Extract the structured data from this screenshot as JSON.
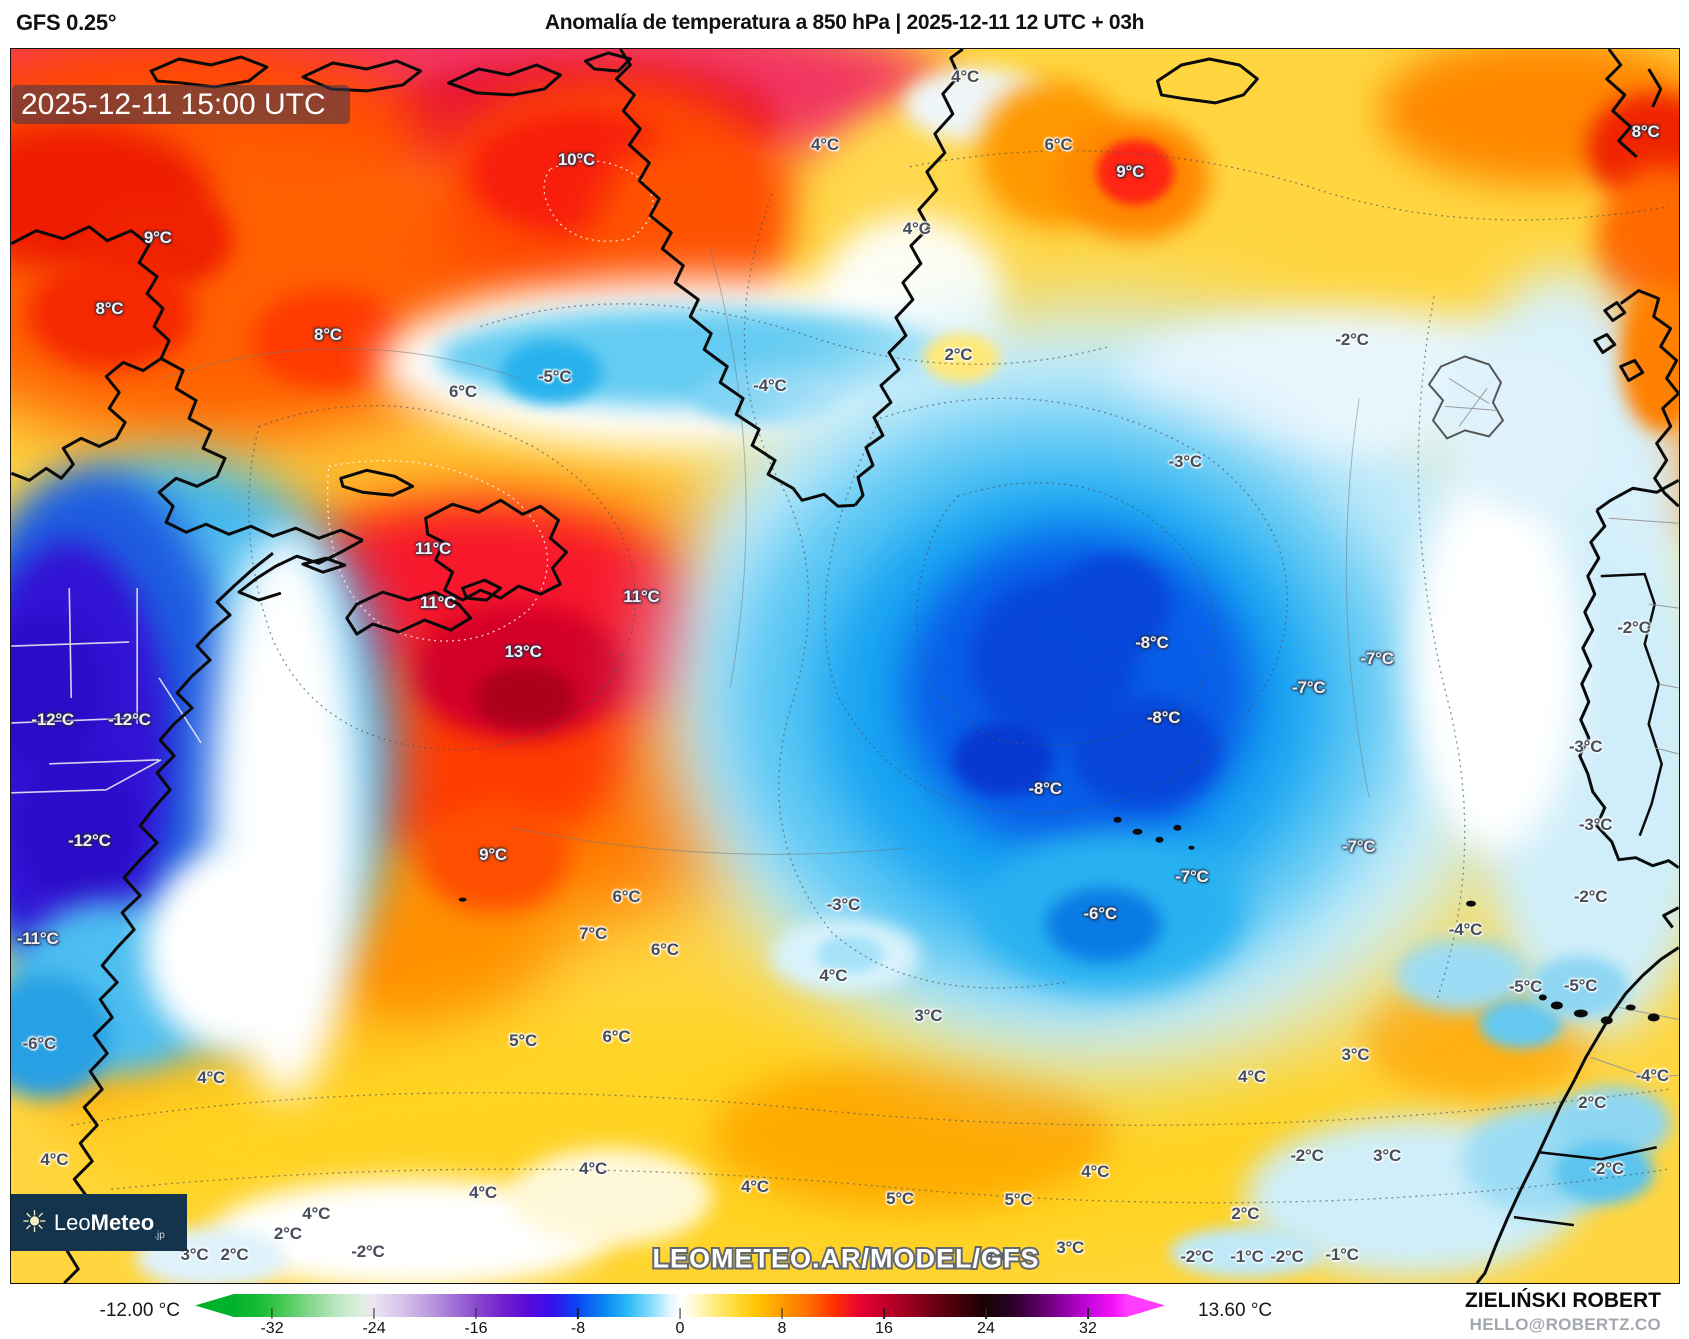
{
  "header": {
    "model": "GFS 0.25°",
    "title": "Anomalía de temperatura a 850 hPa | 2025-12-11 12 UTC + 03h"
  },
  "map": {
    "timestamp": "2025-12-11 15:00 UTC",
    "watermark": "LEOMETEO.AR/MODEL/GFS",
    "logo": {
      "icon": "sun-icon",
      "prefix": "Leo",
      "bold": "Meteo",
      "suffix": ".jp"
    }
  },
  "colorbar": {
    "ticks": [
      "-32",
      "-24",
      "-16",
      "-8",
      "0",
      "8",
      "16",
      "24",
      "32"
    ],
    "value_domain": [
      -35,
      35
    ],
    "min_label": "-12.00 °C",
    "max_label": "13.60 °C",
    "stops": [
      [
        0,
        "#00b22a"
      ],
      [
        4,
        "#00b22a"
      ],
      [
        6.6,
        "#16bc34"
      ],
      [
        9.3,
        "#4cca58"
      ],
      [
        11.9,
        "#84d88e"
      ],
      [
        14.5,
        "#b8e6be"
      ],
      [
        17.1,
        "#e0eee0"
      ],
      [
        18.5,
        "#eae4f2"
      ],
      [
        21.1,
        "#d8c6ea"
      ],
      [
        23.7,
        "#c0a2e2"
      ],
      [
        26.3,
        "#a478d8"
      ],
      [
        29,
        "#8a4ace"
      ],
      [
        31.6,
        "#7422cc"
      ],
      [
        34.2,
        "#5a0ad8"
      ],
      [
        36.8,
        "#3410ec"
      ],
      [
        39.4,
        "#0c46f4"
      ],
      [
        42.1,
        "#0884f2"
      ],
      [
        44.7,
        "#2cbcf8"
      ],
      [
        47.4,
        "#96e0fc"
      ],
      [
        48.7,
        "#d8f4fe"
      ],
      [
        50,
        "#ffffff"
      ],
      [
        51.3,
        "#fffbd8"
      ],
      [
        52.6,
        "#fff2a4"
      ],
      [
        55.3,
        "#ffdf42"
      ],
      [
        57.9,
        "#ffc400"
      ],
      [
        60.5,
        "#ff9c00"
      ],
      [
        63.2,
        "#ff7000"
      ],
      [
        65.8,
        "#ff3400"
      ],
      [
        68.4,
        "#ea0430"
      ],
      [
        71.1,
        "#c2002a"
      ],
      [
        73.7,
        "#98001e"
      ],
      [
        76.3,
        "#6a0012"
      ],
      [
        78.9,
        "#400008"
      ],
      [
        81.6,
        "#180202"
      ],
      [
        84.2,
        "#2a0226"
      ],
      [
        86.8,
        "#56005e"
      ],
      [
        89.5,
        "#8c00a2"
      ],
      [
        92.1,
        "#c306dc"
      ],
      [
        94.7,
        "#f512fa"
      ],
      [
        96,
        "#ff3cff"
      ],
      [
        100,
        "#ff3cff"
      ]
    ]
  },
  "credit": {
    "name": "ZIELIŃSKI ROBERT",
    "email": "HELLO@ROBERTZ.CO"
  },
  "palette": {
    "warm_core": "#d40028",
    "cold_core": "#0846da",
    "land_outline": "#0a0a0a",
    "logo_bg": "#14334d"
  },
  "chart_data": {
    "type": "heatmap",
    "title": "Anomalía de temperatura a 850 hPa",
    "model": "GFS 0.25°",
    "init_time": "2025-12-11 12 UTC",
    "lead_time": "+03h",
    "valid_time": "2025-12-11 15:00 UTC",
    "units": "°C",
    "field_min": -12.0,
    "field_max": 13.6,
    "colorbar_tick_range": [
      -32,
      32
    ],
    "point_labels": [
      [
        "10°C",
        33.9,
        9.0,
        1
      ],
      [
        "4°C",
        57.2,
        2.3,
        0
      ],
      [
        "4°C",
        48.8,
        7.8,
        0
      ],
      [
        "6°C",
        62.8,
        7.8,
        0
      ],
      [
        "9°C",
        67.1,
        10.0,
        1
      ],
      [
        "4°C",
        54.3,
        14.6,
        0
      ],
      [
        "8°C",
        98.0,
        6.7,
        1
      ],
      [
        "9°C",
        8.8,
        15.3,
        1
      ],
      [
        "8°C",
        5.9,
        21.1,
        1
      ],
      [
        "8°C",
        19.0,
        23.2,
        1
      ],
      [
        "6°C",
        27.1,
        27.8,
        0
      ],
      [
        "-5°C",
        32.6,
        26.6,
        0
      ],
      [
        "-4°C",
        45.5,
        27.3,
        0
      ],
      [
        "2°C",
        56.8,
        24.8,
        0
      ],
      [
        "-2°C",
        80.4,
        23.6,
        0
      ],
      [
        "-3°C",
        70.4,
        33.5,
        0
      ],
      [
        "11°C",
        25.3,
        40.5,
        1
      ],
      [
        "11°C",
        25.6,
        44.9,
        1
      ],
      [
        "11°C",
        37.8,
        44.4,
        1
      ],
      [
        "13°C",
        30.7,
        48.9,
        1
      ],
      [
        "-12°C",
        2.5,
        54.4,
        1
      ],
      [
        "-12°C",
        7.1,
        54.4,
        1
      ],
      [
        "-12°C",
        4.7,
        64.2,
        1
      ],
      [
        "-11°C",
        1.6,
        72.1,
        1
      ],
      [
        "9°C",
        28.9,
        65.3,
        1
      ],
      [
        "-8°C",
        68.4,
        48.1,
        1
      ],
      [
        "-8°C",
        69.1,
        54.2,
        1
      ],
      [
        "-8°C",
        62.0,
        60.0,
        1
      ],
      [
        "-7°C",
        81.9,
        49.4,
        1
      ],
      [
        "-7°C",
        77.8,
        51.8,
        1
      ],
      [
        "-7°C",
        80.8,
        64.7,
        1
      ],
      [
        "-7°C",
        70.8,
        67.1,
        1
      ],
      [
        "-2°C",
        97.3,
        46.9,
        0
      ],
      [
        "-3°C",
        94.4,
        56.6,
        0
      ],
      [
        "-3°C",
        95.0,
        62.9,
        0
      ],
      [
        "-2°C",
        94.7,
        68.7,
        0
      ],
      [
        "-6°C",
        65.3,
        70.1,
        1
      ],
      [
        "6°C",
        36.9,
        68.7,
        0
      ],
      [
        "-3°C",
        49.9,
        69.4,
        0
      ],
      [
        "7°C",
        34.9,
        71.7,
        0
      ],
      [
        "6°C",
        39.2,
        73.0,
        0
      ],
      [
        "4°C",
        49.3,
        75.1,
        0
      ],
      [
        "3°C",
        55.0,
        78.4,
        0
      ],
      [
        "6°C",
        36.3,
        80.1,
        0
      ],
      [
        "-6°C",
        1.7,
        80.6,
        0
      ],
      [
        "5°C",
        30.7,
        80.4,
        0
      ],
      [
        "4°C",
        12.0,
        83.4,
        0
      ],
      [
        "-4°C",
        87.2,
        71.4,
        0
      ],
      [
        "-5°C",
        90.8,
        76.0,
        0
      ],
      [
        "-5°C",
        94.1,
        75.9,
        0
      ],
      [
        "3°C",
        80.6,
        81.5,
        0
      ],
      [
        "4°C",
        74.4,
        83.3,
        0
      ],
      [
        "-4°C",
        98.4,
        83.2,
        0
      ],
      [
        "4°C",
        2.6,
        90.0,
        0
      ],
      [
        "4°C",
        34.9,
        90.8,
        0
      ],
      [
        "4°C",
        44.6,
        92.2,
        0
      ],
      [
        "5°C",
        53.3,
        93.2,
        0
      ],
      [
        "5°C",
        60.4,
        93.3,
        0
      ],
      [
        "4°C",
        65.0,
        91.0,
        0
      ],
      [
        "4°C",
        28.3,
        92.7,
        0
      ],
      [
        "4°C",
        18.3,
        94.4,
        0
      ],
      [
        "-2°C",
        77.7,
        89.7,
        0
      ],
      [
        "3°C",
        82.5,
        89.7,
        0
      ],
      [
        "-2°C",
        95.7,
        90.8,
        0
      ],
      [
        "2°C",
        94.8,
        85.4,
        0
      ],
      [
        "2°C",
        74.0,
        94.4,
        0
      ],
      [
        "3°C",
        63.5,
        97.2,
        0
      ],
      [
        "3°C",
        59.2,
        97.9,
        0
      ],
      [
        "3°C",
        11.0,
        97.7,
        0
      ],
      [
        "2°C",
        13.4,
        97.7,
        0
      ],
      [
        "-2°C",
        21.4,
        97.5,
        0
      ],
      [
        "2°C",
        16.6,
        96.0,
        0
      ],
      [
        "-2°C",
        71.1,
        97.9,
        0
      ],
      [
        "-1°C",
        74.1,
        97.9,
        0
      ],
      [
        "-2°C",
        76.5,
        97.9,
        0
      ],
      [
        "-1°C",
        79.8,
        97.7,
        0
      ]
    ]
  }
}
